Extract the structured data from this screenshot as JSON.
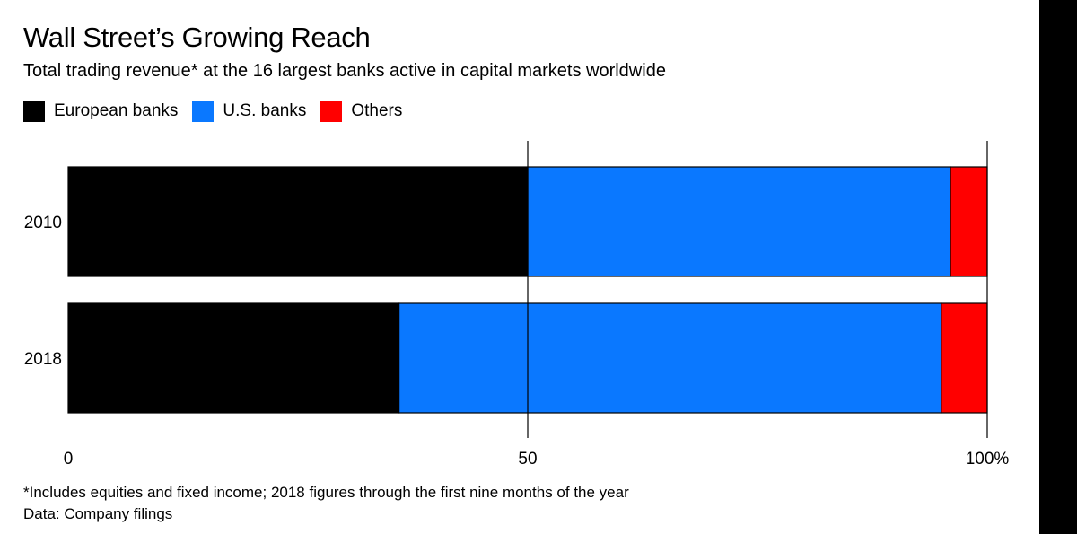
{
  "chart_data": {
    "type": "bar",
    "orientation": "horizontal",
    "stacked": true,
    "title": "Wall Street’s Growing Reach",
    "subtitle": "Total trading revenue* at the 16 largest banks active in capital markets worldwide",
    "categories": [
      "2010",
      "2018"
    ],
    "series": [
      {
        "name": "European banks",
        "color": "#000000",
        "values": [
          50,
          36
        ]
      },
      {
        "name": "U.S. banks",
        "color": "#0a78ff",
        "values": [
          46,
          59
        ]
      },
      {
        "name": "Others",
        "color": "#ff0000",
        "values": [
          4,
          5
        ]
      }
    ],
    "xlim": [
      0,
      100
    ],
    "x_ticks": [
      {
        "value": 0,
        "label": "0"
      },
      {
        "value": 50,
        "label": "50"
      },
      {
        "value": 100,
        "label": "100%"
      }
    ],
    "grid": true,
    "legend_position": "top-left",
    "footnote": "*Includes equities and fixed income; 2018 figures through the first nine months of the year",
    "source": "Data: Company filings"
  }
}
